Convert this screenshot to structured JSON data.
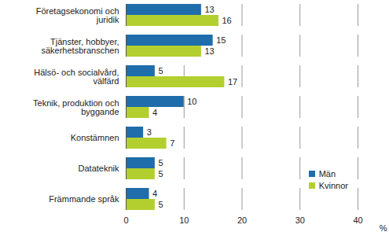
{
  "chart_data": {
    "type": "bar",
    "orientation": "horizontal",
    "categories": [
      "Företagsekonomi och juridik",
      "Tjänster, hobbyer, säkerhetsbranschen",
      "Hälsö- och socialvård, välfärd",
      "Teknik, produktion och byggande",
      "Konstämnen",
      "Datateknik",
      "Främmande språk"
    ],
    "series": [
      {
        "name": "Män",
        "color": "#1f6dab",
        "values": [
          13,
          15,
          5,
          10,
          3,
          5,
          4
        ]
      },
      {
        "name": "Kvinnor",
        "color": "#b3cf2f",
        "values": [
          16,
          13,
          17,
          4,
          7,
          5,
          5
        ]
      }
    ],
    "xlabel": "%",
    "xlim": [
      0,
      40
    ],
    "xticks": [
      0,
      10,
      20,
      30,
      40
    ],
    "grid": true,
    "data_labels": true,
    "legend": "lower right"
  }
}
